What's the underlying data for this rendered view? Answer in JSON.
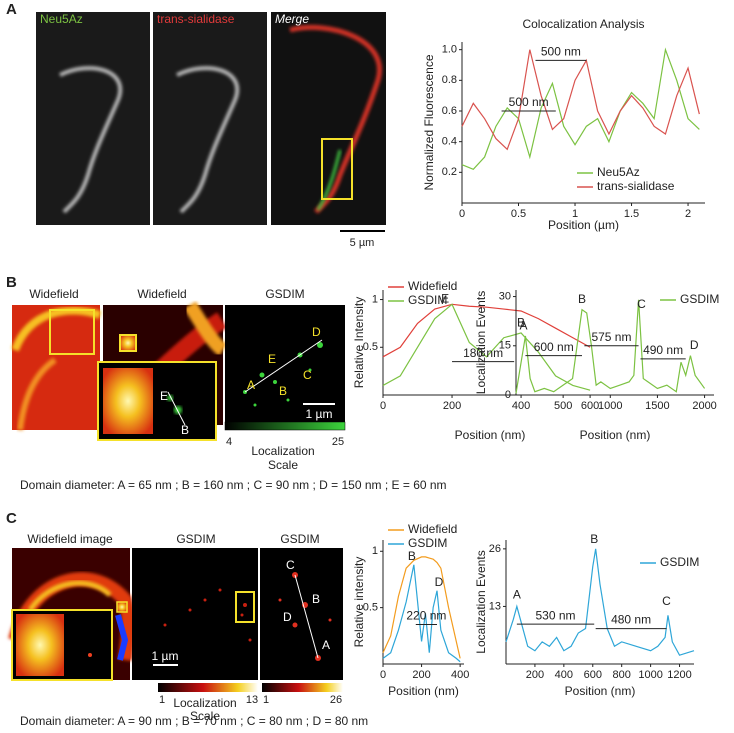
{
  "figure": {
    "panel_labels": [
      "A",
      "B",
      "C"
    ],
    "image_labels_a": [
      "Neu5Az",
      "trans-sialidase",
      "Merge"
    ],
    "image_labels_b": [
      "Widefield",
      "Widefield",
      "GSDIM"
    ],
    "image_labels_c": [
      "Widefield image",
      "GSDIM",
      "GSDIM"
    ],
    "scale_bars": [
      "5 µm",
      "1 µm",
      "1 µm"
    ],
    "b_gsdim_letters": [
      "A",
      "B",
      "C",
      "D",
      "E"
    ],
    "b_inset_letters": [
      "E",
      "B"
    ],
    "c_gsdim_letters": [
      "C",
      "B",
      "D",
      "A"
    ],
    "colorbar_b": {
      "min": 4,
      "max": 25,
      "caption": [
        "Localization",
        "Scale"
      ]
    },
    "colorbar_c1": {
      "min": 1,
      "max": 13,
      "caption": [
        "Localization",
        "Scale"
      ]
    },
    "colorbar_c2": {
      "min": 1,
      "max": 26
    },
    "domain_b": "Domain diameter: A = 65 nm ; B = 160 nm ; C = 90 nm ; D = 150 nm ; E = 60 nm",
    "domain_c": "Domain diameter: A = 90 nm ; B = 70 nm ; C = 80 nm ; D = 80 nm"
  },
  "chart_data": [
    {
      "type": "line",
      "title": "Colocalization Analysis",
      "x_label": "Position (µm)",
      "y_label": "Normalized Fluorescence",
      "x": [
        0,
        0.1,
        0.2,
        0.3,
        0.4,
        0.5,
        0.6,
        0.7,
        0.8,
        0.9,
        1.0,
        1.1,
        1.2,
        1.3,
        1.4,
        1.5,
        1.6,
        1.7,
        1.8,
        1.9,
        2.0,
        2.1
      ],
      "series": [
        {
          "name": "Neu5Az",
          "color": "#7cc242",
          "values": [
            0.25,
            0.22,
            0.3,
            0.5,
            0.62,
            0.55,
            0.3,
            0.62,
            0.78,
            0.5,
            0.38,
            0.5,
            0.55,
            0.4,
            0.6,
            0.72,
            0.65,
            0.55,
            1.0,
            0.8,
            0.55,
            0.48
          ]
        },
        {
          "name": "trans-sialidase",
          "color": "#d9534f",
          "values": [
            0.5,
            0.65,
            0.55,
            0.42,
            0.35,
            0.55,
            1.0,
            0.7,
            0.48,
            0.55,
            0.8,
            0.93,
            0.6,
            0.45,
            0.6,
            0.7,
            0.62,
            0.5,
            0.45,
            0.7,
            0.88,
            0.58
          ]
        }
      ],
      "xlim": [
        0,
        2.15
      ],
      "ylim": [
        0,
        1.05
      ],
      "xticks": [
        0,
        0.5,
        1,
        1.5,
        2
      ],
      "yticks": [
        0.2,
        0.4,
        0.6,
        0.8,
        {
          "value": 1,
          "label": "1.0"
        }
      ],
      "annotations": [
        {
          "text": "500 nm",
          "x": [
            0.65,
            1.1
          ],
          "y": 0.93
        },
        {
          "text": "500 nm",
          "x": [
            0.35,
            0.83
          ],
          "y": 0.6
        }
      ]
    },
    {
      "type": "line",
      "x_label": "Position (nm)",
      "y_label": "Relative Intensity",
      "x": [
        0,
        50,
        100,
        150,
        200,
        250,
        300,
        350,
        400,
        450,
        500,
        550,
        600
      ],
      "series": [
        {
          "name": "Widefield",
          "color": "#e0403a",
          "values": [
            0.4,
            0.5,
            0.75,
            0.9,
            0.95,
            0.93,
            0.92,
            0.9,
            0.88,
            0.8,
            0.7,
            0.6,
            0.5
          ]
        },
        {
          "name": "GSDIM",
          "color": "#7cc242",
          "values": [
            0.1,
            0.2,
            0.5,
            0.8,
            0.95,
            0.55,
            0.4,
            0.6,
            0.65,
            0.45,
            0.2,
            0.1,
            0.05
          ]
        }
      ],
      "xlim": [
        0,
        620
      ],
      "ylim": [
        0,
        1.1
      ],
      "xticks": [
        0,
        200,
        400,
        600
      ],
      "yticks": [
        0.5,
        1
      ],
      "point_labels": [
        {
          "text": "E",
          "x": 180,
          "y": 1.0
        },
        {
          "text": "B",
          "x": 400,
          "y": 0.75
        }
      ],
      "annotations": [
        {
          "text": "180 nm",
          "x": [
            200,
            380
          ],
          "y": 0.35
        }
      ]
    },
    {
      "type": "line",
      "x_label": "Position (nm)",
      "y_label": "Localization Events",
      "x": [
        0,
        100,
        150,
        200,
        300,
        400,
        500,
        600,
        700,
        750,
        800,
        850,
        900,
        1000,
        1100,
        1200,
        1250,
        1300,
        1350,
        1400,
        1500,
        1600,
        1700,
        1750,
        1800,
        1850,
        1900,
        2000
      ],
      "series": [
        {
          "name": "GSDIM",
          "color": "#7cc242",
          "values": [
            0.5,
            18,
            5,
            1,
            2,
            1,
            3,
            5,
            26,
            25,
            15,
            3,
            4,
            2,
            3,
            4,
            6,
            29,
            5,
            4,
            2,
            3,
            1,
            10,
            6,
            12,
            6,
            2
          ]
        }
      ],
      "xlim": [
        0,
        2100
      ],
      "ylim": [
        0,
        32
      ],
      "xticks": [
        500,
        1000,
        1500,
        2000
      ],
      "yticks": [
        0,
        15,
        30
      ],
      "point_labels": [
        {
          "text": "A",
          "x": 80,
          "y": 21
        },
        {
          "text": "B",
          "x": 700,
          "y": 29
        },
        {
          "text": "C",
          "x": 1330,
          "y": 27.5
        },
        {
          "text": "D",
          "x": 1890,
          "y": 15
        }
      ],
      "annotations": [
        {
          "text": "600 nm",
          "x": [
            100,
            700
          ],
          "y": 12
        },
        {
          "text": "575 nm",
          "x": [
            725,
            1300
          ],
          "y": 15
        },
        {
          "text": "490 nm",
          "x": [
            1320,
            1800
          ],
          "y": 11
        }
      ]
    },
    {
      "type": "line",
      "x_label": "Position (nm)",
      "y_label": "Relative intensity",
      "x": [
        0,
        40,
        80,
        120,
        160,
        200,
        220,
        240,
        260,
        280,
        300,
        340,
        380,
        400
      ],
      "series": [
        {
          "name": "Widefield",
          "color": "#f39c1e",
          "values": [
            0.1,
            0.25,
            0.6,
            0.85,
            0.92,
            0.95,
            0.95,
            0.94,
            0.93,
            0.9,
            0.85,
            0.5,
            0.2,
            0.05
          ]
        },
        {
          "name": "GSDIM",
          "color": "#2ea6d8",
          "values": [
            0.05,
            0.1,
            0.3,
            0.55,
            0.88,
            0.2,
            0.45,
            0.1,
            0.5,
            0.65,
            0.3,
            0.1,
            0.05,
            0.02
          ]
        }
      ],
      "xlim": [
        0,
        420
      ],
      "ylim": [
        0,
        1.1
      ],
      "xticks": [
        0,
        200,
        400
      ],
      "yticks": [
        0.5,
        1
      ],
      "point_labels": [
        {
          "text": "B",
          "x": 150,
          "y": 0.95
        },
        {
          "text": "D",
          "x": 290,
          "y": 0.72
        }
      ],
      "annotations": [
        {
          "text": "220 nm",
          "x": [
            170,
            280
          ],
          "y": 0.35
        }
      ]
    },
    {
      "type": "line",
      "x_label": "Position (nm)",
      "y_label": "Localization Events",
      "x": [
        0,
        50,
        75,
        100,
        150,
        200,
        250,
        300,
        350,
        400,
        450,
        500,
        550,
        600,
        620,
        650,
        700,
        750,
        800,
        900,
        1000,
        1050,
        1100,
        1120,
        1150,
        1200,
        1300
      ],
      "series": [
        {
          "name": "GSDIM",
          "color": "#2ea6d8",
          "values": [
            5,
            10,
            13,
            10,
            4,
            3,
            5,
            4,
            6,
            3,
            4,
            7,
            8,
            22,
            26,
            18,
            8,
            4,
            5,
            4,
            3,
            4,
            6,
            11,
            5,
            2,
            3
          ]
        }
      ],
      "xlim": [
        0,
        1300
      ],
      "ylim": [
        0,
        28
      ],
      "xticks": [
        200,
        400,
        600,
        800,
        1000,
        1200
      ],
      "yticks": [
        13,
        26
      ],
      "point_labels": [
        {
          "text": "A",
          "x": 75,
          "y": 15.5
        },
        {
          "text": "B",
          "x": 610,
          "y": 28
        },
        {
          "text": "C",
          "x": 1110,
          "y": 14
        }
      ],
      "annotations": [
        {
          "text": "530 nm",
          "x": [
            75,
            610
          ],
          "y": 9
        },
        {
          "text": "480 nm",
          "x": [
            620,
            1110
          ],
          "y": 8
        }
      ]
    }
  ]
}
